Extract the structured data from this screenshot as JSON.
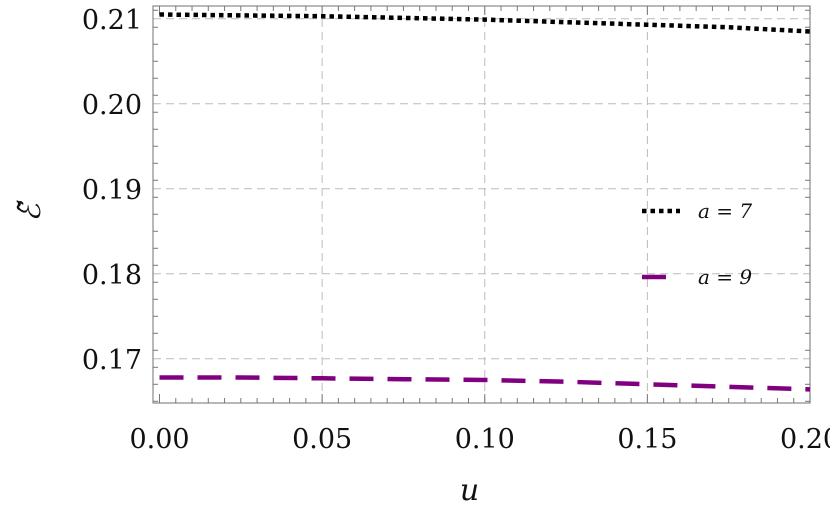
{
  "chart_data": {
    "type": "line",
    "title": "",
    "xlabel": "u",
    "ylabel": "ℰ̃",
    "xlim": [
      -0.002,
      0.2
    ],
    "ylim": [
      0.1648,
      0.2115
    ],
    "grid": true,
    "legend_position": "right",
    "x_ticks": [
      0.0,
      0.05,
      0.1,
      0.15,
      0.2
    ],
    "x_tick_labels": [
      "0.00",
      "0.05",
      "0.10",
      "0.15",
      "0.20"
    ],
    "y_ticks": [
      0.17,
      0.18,
      0.19,
      0.2,
      0.21
    ],
    "y_tick_labels": [
      "0.17",
      "0.18",
      "0.19",
      "0.20",
      "0.21"
    ],
    "series": [
      {
        "name": "a = 7",
        "color": "#000000",
        "style": "dotted",
        "x": [
          0.0,
          0.025,
          0.05,
          0.075,
          0.1,
          0.125,
          0.15,
          0.175,
          0.2
        ],
        "y": [
          0.2105,
          0.2104,
          0.2103,
          0.2101,
          0.2099,
          0.2096,
          0.2093,
          0.209,
          0.2085
        ]
      },
      {
        "name": "a = 9",
        "color": "#800080",
        "style": "dashed",
        "x": [
          0.0,
          0.025,
          0.05,
          0.075,
          0.1,
          0.125,
          0.15,
          0.175,
          0.2
        ],
        "y": [
          0.1678,
          0.1678,
          0.1677,
          0.1676,
          0.1675,
          0.1673,
          0.167,
          0.1667,
          0.1664
        ]
      }
    ]
  }
}
